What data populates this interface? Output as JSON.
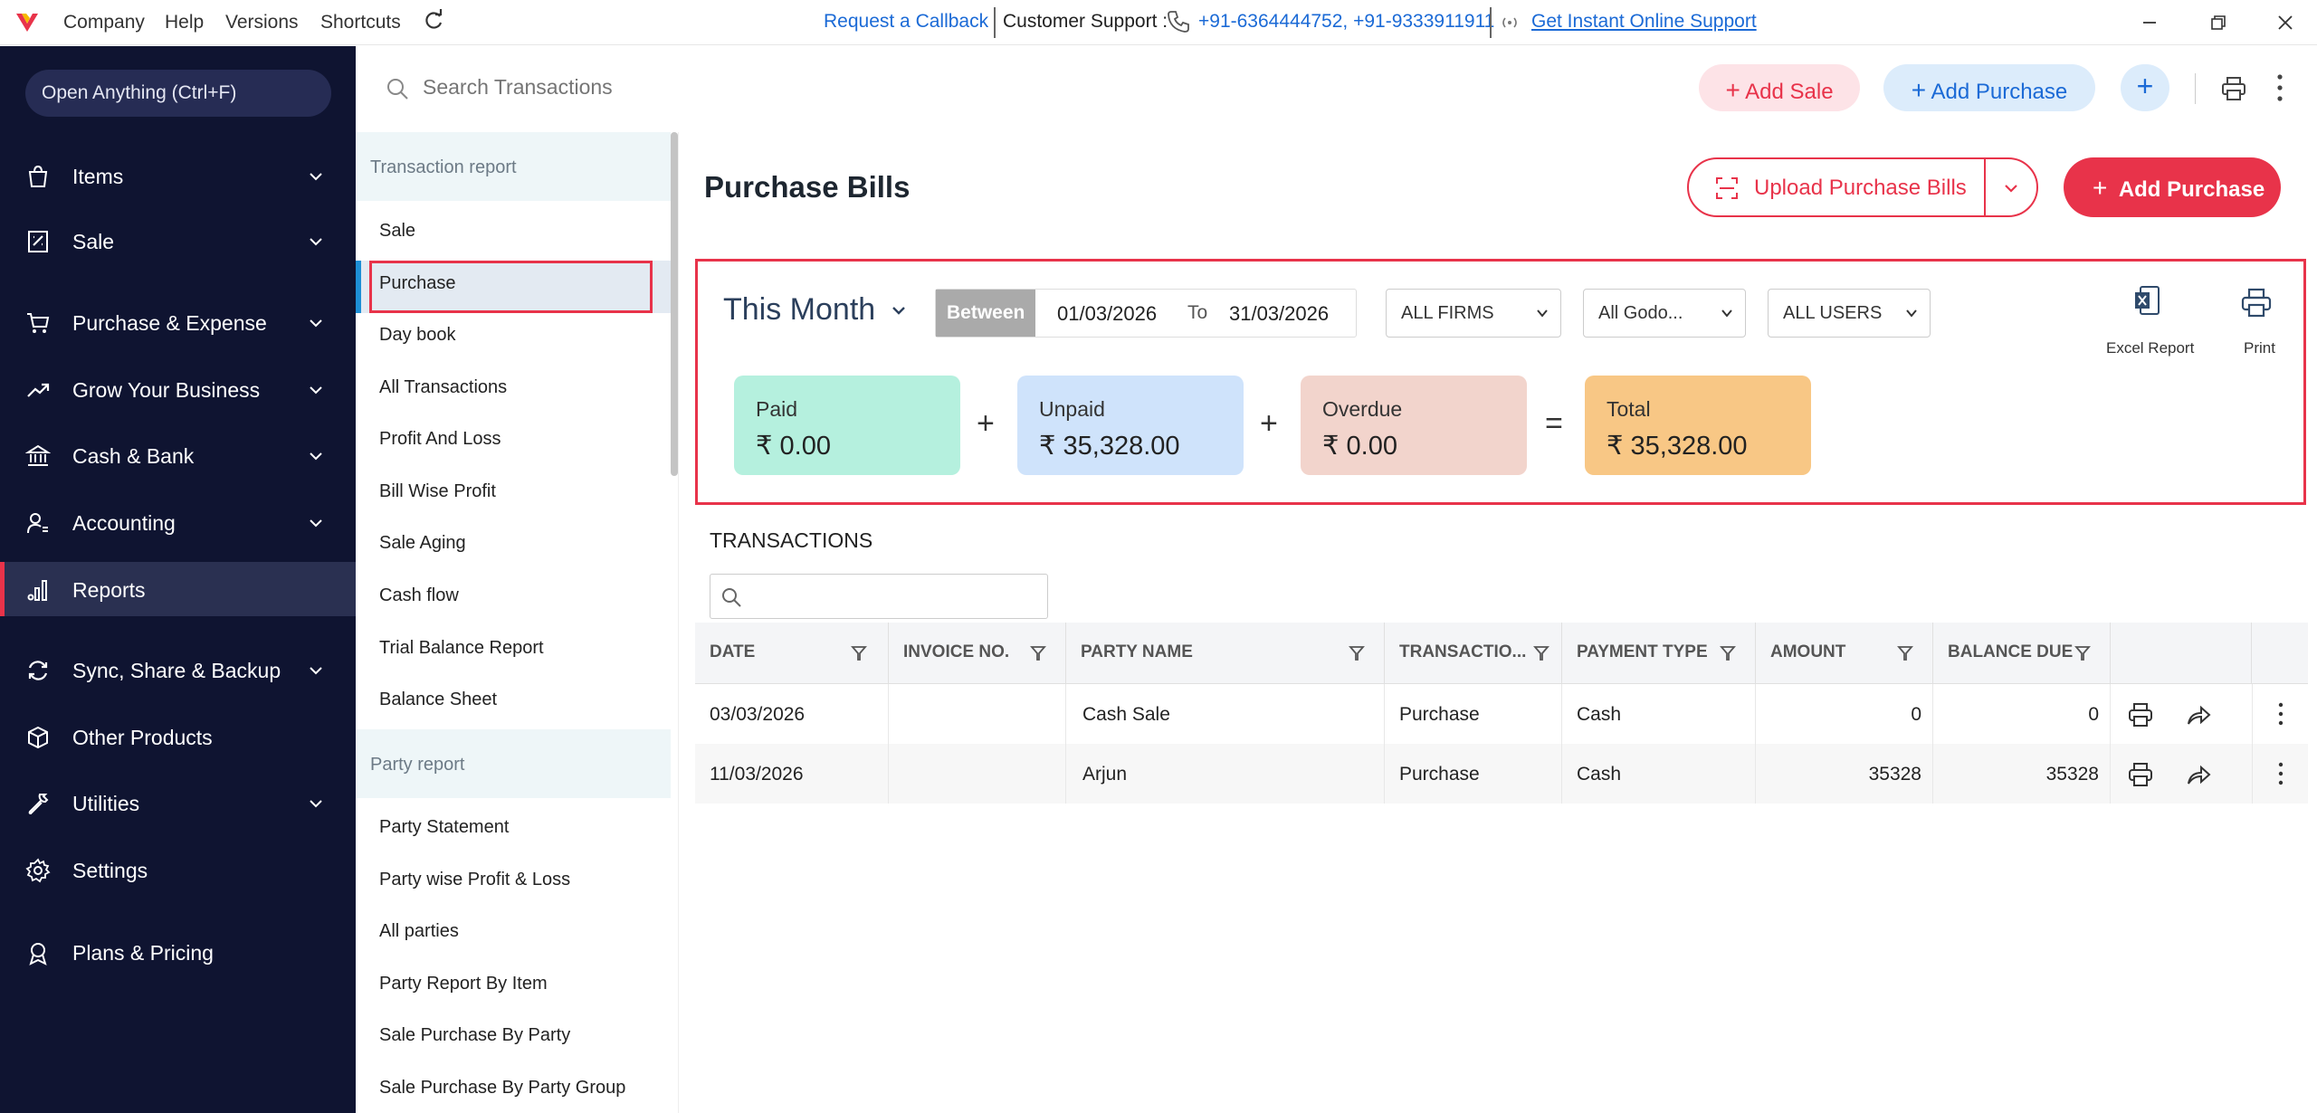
{
  "titlebar": {
    "menu": [
      "Company",
      "Help",
      "Versions",
      "Shortcuts"
    ],
    "callback": "Request a Callback",
    "support_label": "Customer Support :",
    "phones": "+91-6364444752, +91-9333911911",
    "instant_support": "Get Instant Online Support"
  },
  "sidebar": {
    "open_anything": "Open Anything (Ctrl+F)",
    "items": [
      {
        "label": "Items",
        "icon": "items-icon"
      },
      {
        "label": "Sale",
        "icon": "receipt-icon"
      },
      {
        "label": "Purchase & Expense",
        "icon": "cart-icon"
      },
      {
        "label": "Grow Your Business",
        "icon": "trend-icon"
      },
      {
        "label": "Cash & Bank",
        "icon": "bank-icon"
      },
      {
        "label": "Accounting",
        "icon": "accounting-icon"
      },
      {
        "label": "Reports",
        "icon": "reports-icon"
      },
      {
        "label": "Sync, Share & Backup",
        "icon": "sync-icon"
      },
      {
        "label": "Other Products",
        "icon": "box-icon"
      },
      {
        "label": "Utilities",
        "icon": "utilities-icon"
      },
      {
        "label": "Settings",
        "icon": "gear-icon"
      },
      {
        "label": "Plans & Pricing",
        "icon": "badge-icon"
      }
    ]
  },
  "topbar": {
    "search_placeholder": "Search Transactions",
    "add_sale": "Add Sale",
    "add_purchase": "Add Purchase",
    "plus": "+"
  },
  "submenu": {
    "transaction_head": "Transaction report",
    "transaction_items": [
      "Sale",
      "Purchase",
      "Day book",
      "All Transactions",
      "Profit And Loss",
      "Bill Wise Profit",
      "Sale Aging",
      "Cash flow",
      "Trial Balance Report",
      "Balance Sheet"
    ],
    "party_head": "Party report",
    "party_items": [
      "Party Statement",
      "Party wise Profit & Loss",
      "All parties",
      "Party Report By Item",
      "Sale Purchase By Party",
      "Sale Purchase By Party Group"
    ]
  },
  "main": {
    "title": "Purchase Bills",
    "upload_label": "Upload Purchase Bills",
    "add_purchase": "Add Purchase",
    "period": "This Month",
    "between": "Between",
    "date_from": "01/03/2026",
    "to": "To",
    "date_to": "31/03/2026",
    "firms": "ALL FIRMS",
    "godown": "All Godo...",
    "users": "ALL USERS",
    "excel_label": "Excel Report",
    "print_label": "Print",
    "cards": [
      {
        "label": "Paid",
        "value": "₹ 0.00",
        "color": "#b5f0de"
      },
      {
        "label": "Unpaid",
        "value": "₹ 35,328.00",
        "color": "#cfe3fb"
      },
      {
        "label": "Overdue",
        "value": "₹ 0.00",
        "color": "#f2d4cc"
      },
      {
        "label": "Total",
        "value": "₹ 35,328.00",
        "color": "#f8c785"
      }
    ],
    "ops": [
      "+",
      "+",
      "="
    ],
    "transactions_title": "TRANSACTIONS"
  },
  "table": {
    "headers": [
      "DATE",
      "INVOICE NO.",
      "PARTY NAME",
      "TRANSACTIO...",
      "PAYMENT TYPE",
      "AMOUNT",
      "BALANCE DUE"
    ],
    "rows": [
      {
        "date": "03/03/2026",
        "invoice": "",
        "party": "Cash Sale",
        "type": "Purchase",
        "payment": "Cash",
        "amount": "0",
        "balance": "0"
      },
      {
        "date": "11/03/2026",
        "invoice": "",
        "party": "Arjun",
        "type": "Purchase",
        "payment": "Cash",
        "amount": "35328",
        "balance": "35328"
      }
    ]
  },
  "colors": {
    "brand_red": "#e8334a",
    "brand_blue": "#1b6ad6",
    "sidebar_bg": "#0f1431"
  }
}
